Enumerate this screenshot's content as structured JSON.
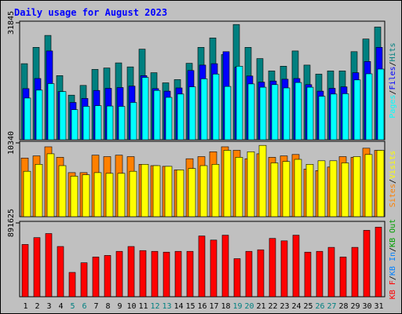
{
  "title": "Daily usage for August 2023",
  "colors": {
    "background": "#c0c0c0",
    "plot_background": "#c0c0c0",
    "title": "#0000ff",
    "grid": "#000000",
    "day_label": "#000000",
    "weekend_label": "#008080",
    "hits": "#008080",
    "files": "#0000ff",
    "pages": "#00ffff",
    "visits": "#ffff00",
    "sites": "#ff8000",
    "kb_in": "#0080ff",
    "kb_out": "#00a000",
    "kb_f": "#ff0000",
    "separator": "#000000",
    "label_hits": "#008080",
    "label_files": "#0000ff",
    "label_pages": "#00ffff",
    "label_visits": "#ffff00",
    "label_sites": "#ff8000",
    "label_kbin": "#0080ff",
    "label_kbout": "#00a000",
    "label_kbf": "#ff0000"
  },
  "chart_data": [
    {
      "type": "bar",
      "panel": "hits-files-pages",
      "ymax_label": "31845",
      "ylim": [
        0,
        31845
      ],
      "categories": [
        "1",
        "2",
        "3",
        "4",
        "5",
        "6",
        "7",
        "8",
        "9",
        "10",
        "11",
        "12",
        "13",
        "14",
        "15",
        "16",
        "17",
        "18",
        "19",
        "20",
        "21",
        "22",
        "23",
        "24",
        "25",
        "26",
        "27",
        "28",
        "29",
        "30",
        "31"
      ],
      "weekend_days": [
        "5",
        "6",
        "12",
        "13",
        "19",
        "20",
        "26",
        "27"
      ],
      "legend": [
        "Pages",
        "Files",
        "Hits"
      ],
      "series": [
        {
          "name": "Hits",
          "color_key": "hits",
          "values": [
            21000,
            25500,
            28800,
            17700,
            12300,
            15000,
            19400,
            19800,
            21200,
            20100,
            25000,
            18500,
            15700,
            16600,
            21100,
            25500,
            28100,
            23500,
            31800,
            25500,
            22400,
            19000,
            20300,
            24500,
            20600,
            18100,
            19000,
            19000,
            24300,
            27800,
            31100
          ]
        },
        {
          "name": "Files",
          "color_key": "files",
          "values": [
            14100,
            16900,
            24500,
            13300,
            10300,
            11400,
            13600,
            14200,
            14400,
            14800,
            17700,
            14100,
            13400,
            14300,
            19100,
            20600,
            21000,
            24300,
            20000,
            17600,
            15900,
            16200,
            16700,
            16900,
            15200,
            13400,
            14200,
            14600,
            18500,
            21600,
            25500
          ]
        },
        {
          "name": "Pages",
          "color_key": "pages",
          "values": [
            11500,
            13700,
            15500,
            13300,
            8300,
            9200,
            9400,
            9300,
            9200,
            10300,
            17200,
            13600,
            11700,
            12600,
            14600,
            16800,
            18100,
            14700,
            20300,
            15400,
            14500,
            15200,
            14300,
            15800,
            14500,
            12000,
            12600,
            12700,
            16500,
            18200,
            19500
          ]
        }
      ]
    },
    {
      "type": "bar",
      "panel": "visits-sites",
      "ymax_label": "10340",
      "ylim": [
        0,
        10340
      ],
      "legend": [
        "Sites",
        "Visits"
      ],
      "series": [
        {
          "name": "Visits",
          "color_key": "visits",
          "values": [
            6500,
            7500,
            9000,
            7300,
            5800,
            6000,
            6300,
            6200,
            6200,
            6500,
            7500,
            7300,
            7200,
            6700,
            6900,
            7300,
            7500,
            9500,
            8500,
            9300,
            10200,
            7700,
            7900,
            8200,
            7500,
            8000,
            8000,
            7700,
            8600,
            8900,
            9500
          ]
        },
        {
          "name": "Sites",
          "color_key": "sites",
          "values": [
            8400,
            8700,
            10000,
            8500,
            6300,
            6300,
            8800,
            8600,
            8800,
            8600,
            7500,
            7300,
            7200,
            6700,
            8300,
            8600,
            9300,
            10000,
            9500,
            8300,
            9000,
            8500,
            8700,
            8900,
            6800,
            6600,
            7100,
            8600,
            8500,
            9800,
            9500
          ]
        }
      ]
    },
    {
      "type": "bar",
      "panel": "kbytes",
      "ymax_label": "891625",
      "ylim": [
        0,
        891625
      ],
      "legend": [
        "KB F",
        "KB In",
        "KB Out"
      ],
      "series": [
        {
          "name": "KB F",
          "color_key": "kb_f",
          "values": [
            645000,
            730000,
            780000,
            620000,
            300000,
            420000,
            490000,
            510000,
            560000,
            620000,
            570000,
            560000,
            550000,
            560000,
            560000,
            750000,
            700000,
            760000,
            470000,
            560000,
            580000,
            720000,
            690000,
            760000,
            550000,
            560000,
            610000,
            490000,
            610000,
            820000,
            860000
          ]
        }
      ]
    }
  ]
}
